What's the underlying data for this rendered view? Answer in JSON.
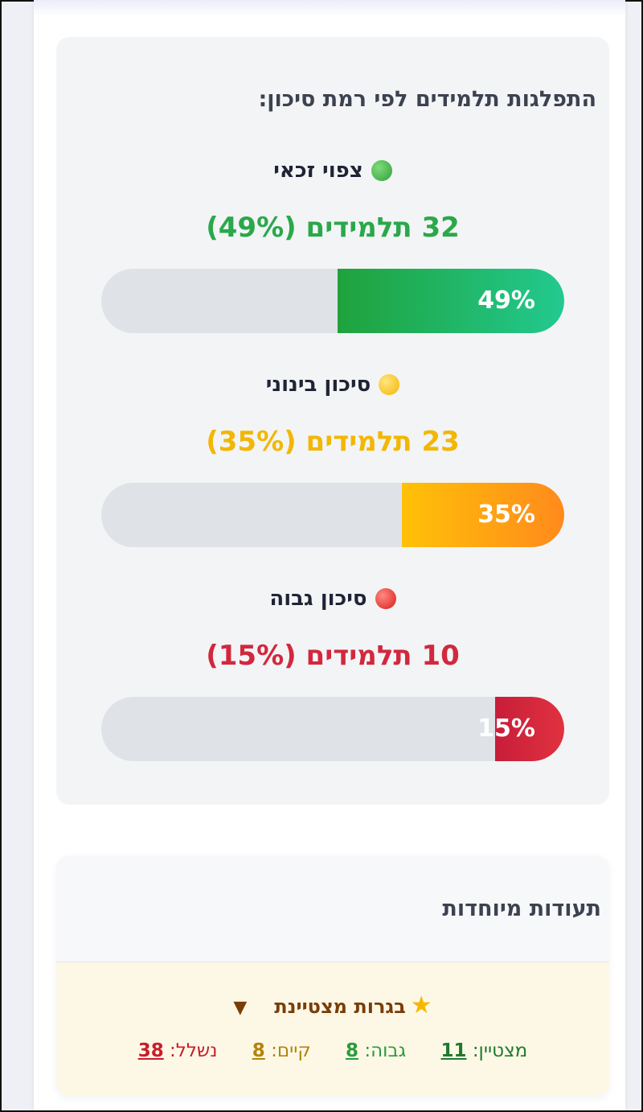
{
  "risk_section": {
    "title": "התפלגות תלמידים לפי רמת סיכון:",
    "levels": [
      {
        "label": "צפוי זכאי",
        "count_text": "32 תלמידים (49%)",
        "percent_text": "49%",
        "percent": 49,
        "color": "#2aa84a",
        "dot_color": "#3fb94a",
        "fill_from": "#1fa23c",
        "fill_to": "#22c98f"
      },
      {
        "label": "סיכון בינוני",
        "count_text": "23 תלמידים (35%)",
        "percent_text": "35%",
        "percent": 35,
        "color": "#f2b705",
        "dot_color": "#ffc825",
        "fill_from": "#ffc107",
        "fill_to": "#ff8a1c"
      },
      {
        "label": "סיכון גבוה",
        "count_text": "10 תלמידים (15%)",
        "percent_text": "15%",
        "percent": 15,
        "color": "#d2283d",
        "dot_color": "#e3222c",
        "fill_from": "#c81d3a",
        "fill_to": "#e0323f"
      }
    ]
  },
  "certificates": {
    "title": "תעודות מיוחדות",
    "items": [
      {
        "name": "בגרות מצטיינת",
        "icon": "star-icon",
        "grades": [
          {
            "label": "מצטיין:",
            "value": "11",
            "color": "#1f7a30"
          },
          {
            "label": "גבוה:",
            "value": "8",
            "color": "#2b9a3e"
          },
          {
            "label": "קיים:",
            "value": "8",
            "color": "#b5830a"
          },
          {
            "label": "נשלל:",
            "value": "38",
            "color": "#c81d2a"
          }
        ]
      }
    ]
  }
}
